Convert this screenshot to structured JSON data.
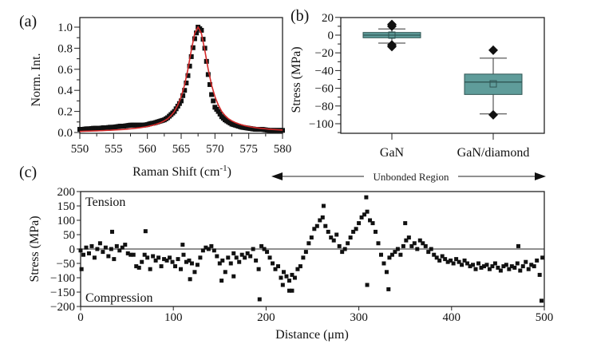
{
  "chart_data": [
    {
      "panel": "(a)",
      "type": "scatter",
      "xlabel": "Raman Shift (cm",
      "xlabel_sup": "-1",
      "xlabel_end": ")",
      "ylabel": "Norm. Int.",
      "xlim": [
        550,
        580
      ],
      "ylim": [
        0,
        1.05
      ],
      "xticks": [
        "550",
        "555",
        "560",
        "565",
        "570",
        "575",
        "580"
      ],
      "yticks": [
        "0.0",
        "0.2",
        "0.4",
        "0.6",
        "0.8",
        "1.0"
      ],
      "series": [
        {
          "name": "data",
          "marker": "square",
          "color": "#111111",
          "x": [
            550,
            550.5,
            551,
            551.5,
            552,
            552.5,
            553,
            553.5,
            554,
            554.5,
            555,
            555.5,
            556,
            556.5,
            557,
            557.5,
            558,
            558.5,
            559,
            559.5,
            560,
            560.5,
            561,
            561.5,
            562,
            562.5,
            563,
            563.5,
            564,
            564.5,
            565,
            565.5,
            566,
            566.5,
            567,
            567.5,
            568,
            568.5,
            569,
            569.5,
            570,
            570.5,
            571,
            571.5,
            572,
            572.5,
            573,
            573.5,
            574,
            574.5,
            575,
            575.5,
            576,
            576.5,
            577,
            577.5,
            578,
            578.5,
            579,
            579.5,
            580
          ],
          "y": [
            0.03,
            0.03,
            0.035,
            0.035,
            0.04,
            0.04,
            0.04,
            0.045,
            0.045,
            0.05,
            0.05,
            0.055,
            0.06,
            0.06,
            0.065,
            0.07,
            0.07,
            0.07,
            0.07,
            0.07,
            0.075,
            0.085,
            0.09,
            0.1,
            0.11,
            0.12,
            0.14,
            0.17,
            0.2,
            0.25,
            0.3,
            0.4,
            0.54,
            0.72,
            0.89,
            1.0,
            0.97,
            0.8,
            0.55,
            0.36,
            0.24,
            0.2,
            0.15,
            0.12,
            0.1,
            0.08,
            0.07,
            0.06,
            0.05,
            0.045,
            0.04,
            0.035,
            0.03,
            0.03,
            0.03,
            0.025,
            0.02,
            0.02,
            0.02,
            0.02,
            0.02
          ]
        },
        {
          "name": "fit",
          "type": "line",
          "color": "#d42a2a",
          "y": [
            0.01,
            0.012,
            0.013,
            0.014,
            0.015,
            0.016,
            0.017,
            0.018,
            0.02,
            0.021,
            0.023,
            0.025,
            0.027,
            0.029,
            0.032,
            0.035,
            0.038,
            0.042,
            0.046,
            0.051,
            0.057,
            0.064,
            0.072,
            0.082,
            0.095,
            0.11,
            0.13,
            0.16,
            0.2,
            0.26,
            0.34,
            0.45,
            0.6,
            0.78,
            0.94,
            1.0,
            0.94,
            0.78,
            0.6,
            0.45,
            0.34,
            0.26,
            0.2,
            0.16,
            0.13,
            0.11,
            0.095,
            0.082,
            0.072,
            0.064,
            0.057,
            0.051,
            0.046,
            0.042,
            0.038,
            0.035,
            0.032,
            0.029,
            0.027,
            0.025,
            0.023
          ]
        }
      ]
    },
    {
      "panel": "(b)",
      "type": "box",
      "ylabel": "Stress (MPa)",
      "ylim": [
        -110,
        20
      ],
      "yticks": [
        "20",
        "0",
        "−20",
        "−40",
        "−60",
        "−80",
        "−100"
      ],
      "categories": [
        "GaN",
        "GaN/diamond"
      ],
      "box_color": "#5f9c9a",
      "boxes": [
        {
          "q1": -3,
          "median": 0,
          "q3": 3,
          "mean": 0,
          "whisker_low": -9,
          "whisker_high": 7,
          "outliers": [
            10,
            12,
            -11,
            -13
          ]
        },
        {
          "q1": -67,
          "median": -53,
          "q3": -44,
          "mean": -55,
          "whisker_low": -89,
          "whisker_high": -26,
          "outliers": [
            -17,
            -90
          ]
        }
      ]
    },
    {
      "panel": "(c)",
      "type": "scatter",
      "xlabel": "Distance (μm)",
      "ylabel": "Stress (MPa)",
      "xlim": [
        0,
        500
      ],
      "ylim": [
        -200,
        200
      ],
      "xticks": [
        "0",
        "100",
        "200",
        "300",
        "400",
        "500"
      ],
      "yticks": [
        "200",
        "150",
        "100",
        "50",
        "0",
        "−50",
        "−100",
        "−150",
        "−200"
      ],
      "annotations": {
        "top": "Tension",
        "bottom": "Compression",
        "region": "Unbonded Region"
      },
      "x_start": 0,
      "x_step": 3,
      "y": [
        -5,
        -20,
        5,
        -15,
        10,
        -30,
        0,
        20,
        -10,
        5,
        -25,
        0,
        -35,
        10,
        -5,
        5,
        15,
        -15,
        -20,
        -20,
        -60,
        -65,
        -45,
        -20,
        -30,
        -70,
        -25,
        -40,
        -30,
        -60,
        -35,
        -40,
        -30,
        -45,
        -60,
        -35,
        -70,
        -20,
        -45,
        -40,
        -50,
        -80,
        -55,
        -30,
        -5,
        5,
        0,
        10,
        -5,
        -25,
        -50,
        -40,
        -80,
        -30,
        -50,
        -15,
        -30,
        -45,
        -20,
        -30,
        -15,
        -25,
        0,
        -40,
        -70,
        10,
        0,
        -10,
        -30,
        -50,
        -70,
        -60,
        -100,
        -80,
        -95,
        -110,
        -90,
        -100,
        -70,
        -60,
        -30,
        -10,
        20,
        40,
        70,
        80,
        100,
        110,
        80,
        60,
        40,
        30,
        50,
        10,
        -10,
        0,
        20,
        40,
        60,
        70,
        90,
        110,
        120,
        130,
        100,
        90,
        60,
        20,
        -20,
        -50,
        -80,
        -30,
        -20,
        -10,
        0,
        -20,
        10,
        30,
        40,
        10,
        20,
        0,
        30,
        20,
        10,
        -10,
        0,
        -20,
        -30,
        -40,
        -25,
        -35,
        -45,
        -40,
        -50,
        -35,
        -45,
        -55,
        -40,
        -50,
        -60,
        -55,
        -70,
        -50,
        -65,
        -60,
        -55,
        -70,
        -60,
        -50,
        -65,
        -75,
        -60,
        -55,
        -70,
        -60,
        -65,
        -50,
        -75,
        -60,
        -45,
        -70,
        -55,
        -60,
        -40,
        -90,
        -30
      ],
      "extra_points": [
        [
          1,
          -70
        ],
        [
          34,
          60
        ],
        [
          70,
          62
        ],
        [
          110,
          15
        ],
        [
          118,
          -105
        ],
        [
          152,
          -110
        ],
        [
          165,
          -95
        ],
        [
          193,
          -175
        ],
        [
          218,
          -125
        ],
        [
          225,
          -145
        ],
        [
          228,
          -145
        ],
        [
          262,
          150
        ],
        [
          308,
          180
        ],
        [
          309,
          -125
        ],
        [
          332,
          -140
        ],
        [
          350,
          90
        ],
        [
          472,
          10
        ],
        [
          497,
          -180
        ]
      ]
    }
  ]
}
